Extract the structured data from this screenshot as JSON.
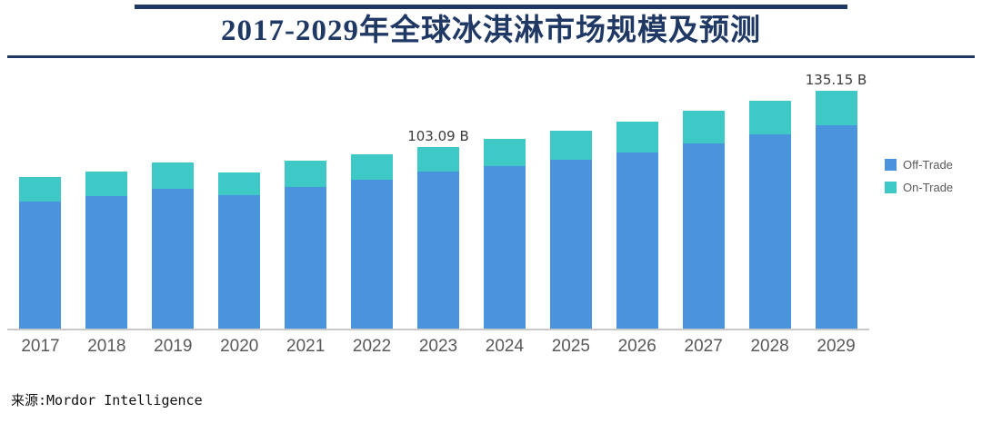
{
  "title": "2017-2029年全球冰淇淋市场规模及预测",
  "source": "来源:Mordor Intelligence",
  "legend": [
    {
      "label": "Off-Trade",
      "color": "#4A94DD"
    },
    {
      "label": "On-Trade",
      "color": "#3FC9C6"
    }
  ],
  "colors": {
    "title": "#1F3864",
    "rule": "#1F3864",
    "axis_label": "#595959",
    "annotation": "#3B3B3B",
    "baseline": "#C9C9C9"
  },
  "chart_data": {
    "type": "bar",
    "stacked": true,
    "title": "2017-2029年全球冰淇淋市场规模及预测",
    "unit": "B (billion USD)",
    "xlabel": "",
    "ylabel": "",
    "ylim": [
      0,
      140
    ],
    "grid": false,
    "legend_position": "right",
    "categories": [
      "2017",
      "2018",
      "2019",
      "2020",
      "2021",
      "2022",
      "2023",
      "2024",
      "2025",
      "2026",
      "2027",
      "2028",
      "2029"
    ],
    "series": [
      {
        "name": "Off-Trade",
        "color": "#4A94DD",
        "values": [
          72,
          75,
          79,
          75.5,
          80,
          84.5,
          89,
          92,
          95.5,
          100,
          105,
          110,
          115.5
        ]
      },
      {
        "name": "On-Trade",
        "color": "#3FC9C6",
        "values": [
          14,
          14,
          15,
          13,
          15,
          14.5,
          14.09,
          15.6,
          16.8,
          17.2,
          18.3,
          19.1,
          19.65
        ]
      }
    ],
    "totals": [
      86,
      89,
      94,
      88.5,
      95,
      99,
      103.09,
      107.6,
      112.3,
      117.2,
      123.3,
      129.1,
      135.15
    ],
    "annotations": [
      {
        "category": "2023",
        "text": "103.09 B"
      },
      {
        "category": "2029",
        "text": "135.15 B"
      }
    ]
  }
}
